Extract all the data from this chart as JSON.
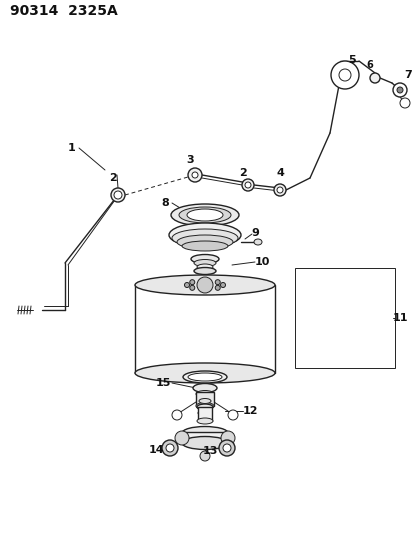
{
  "title": "90314  2325A",
  "background_color": "#ffffff",
  "line_color": "#222222",
  "label_color": "#111111",
  "font_size_title": 10,
  "font_size_labels": 8,
  "fig_width": 4.14,
  "fig_height": 5.33,
  "dpi": 100
}
